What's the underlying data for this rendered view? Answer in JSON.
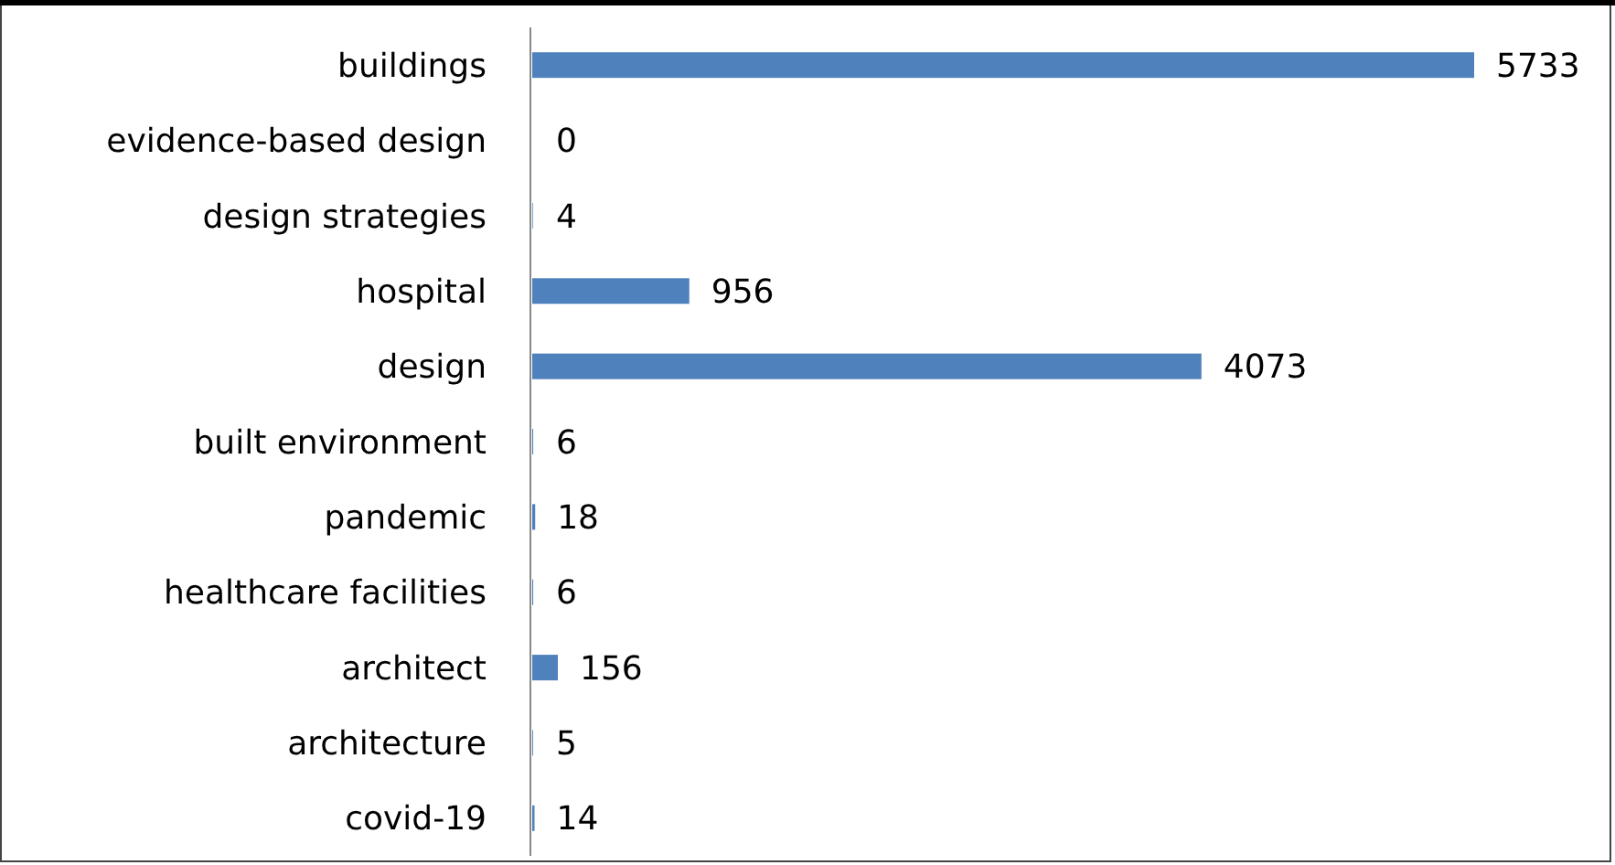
{
  "chart_data": {
    "type": "bar",
    "orientation": "horizontal",
    "categories": [
      "buildings",
      "evidence-based design",
      "design strategies",
      "hospital",
      "design",
      "built environment",
      "pandemic",
      "healthcare facilities",
      "architect",
      "architecture",
      "covid-19"
    ],
    "values": [
      5733,
      0,
      4,
      956,
      4073,
      6,
      18,
      6,
      156,
      5,
      14
    ],
    "color": "#4f81bd",
    "data_labels": true
  }
}
